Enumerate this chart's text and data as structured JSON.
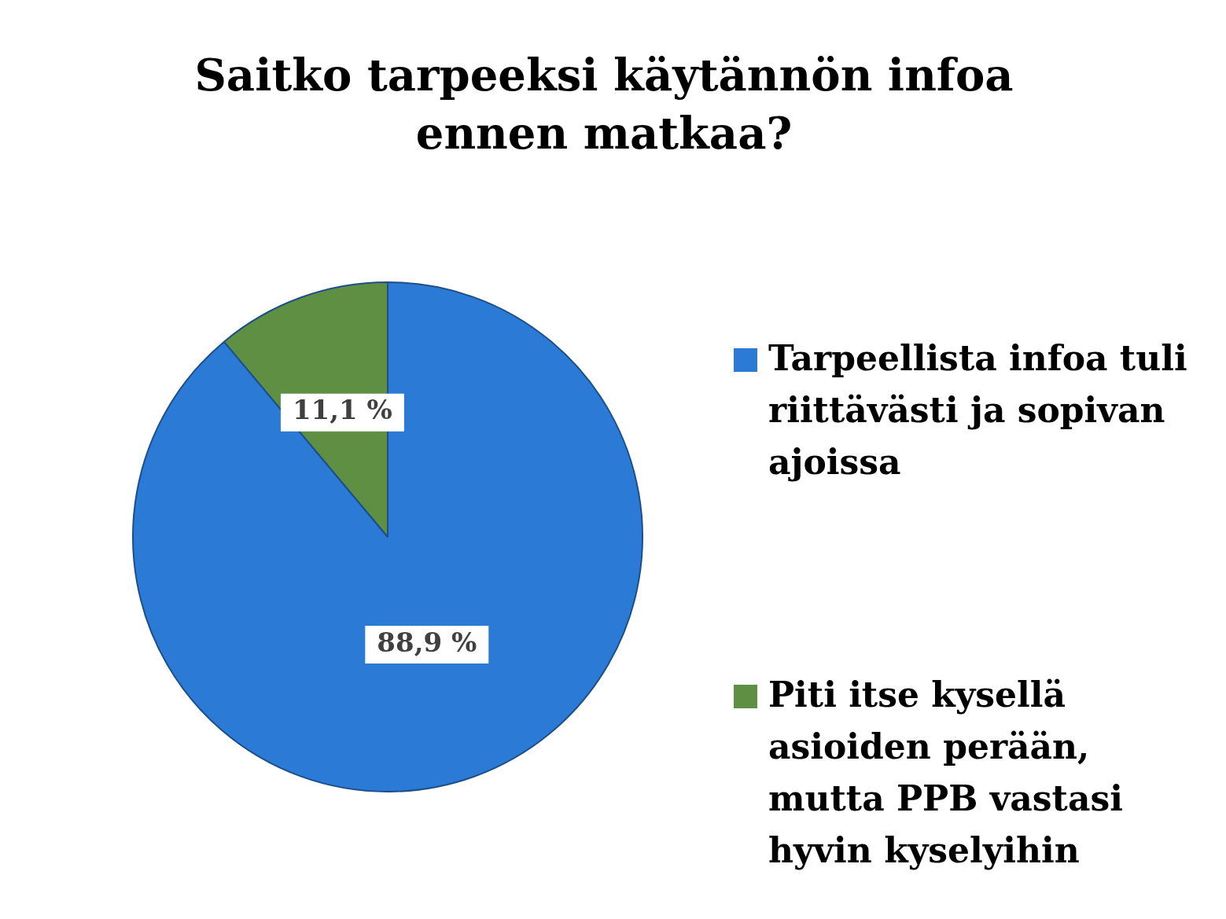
{
  "chart_data": {
    "type": "pie",
    "title": "Saitko tarpeeksi käytännön infoa ennen matkaa?",
    "categories": [
      "Tarpeellista infoa tuli riittävästi ja sopivan ajoissa",
      "Piti itse kysellä asioiden perään, mutta PPB vastasi hyvin kyselyihin"
    ],
    "values": [
      88.9,
      11.1
    ],
    "colors": [
      "#2b7bd6",
      "#5f8f42"
    ],
    "value_labels": [
      "88,9 %",
      "11,1 %"
    ],
    "legend": "right"
  }
}
